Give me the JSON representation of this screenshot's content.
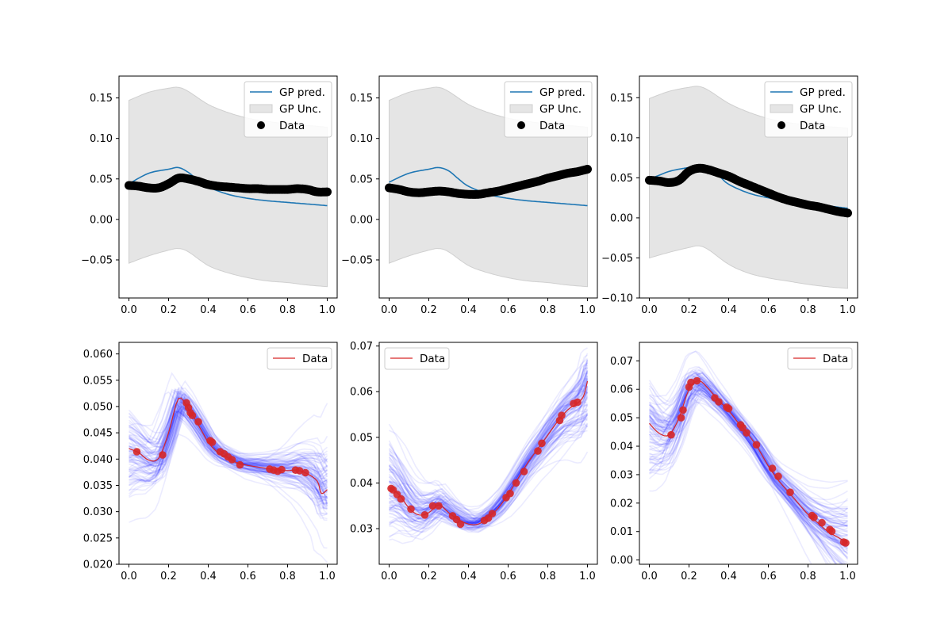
{
  "chart_data": [
    {
      "type": "line",
      "panel": "top-left",
      "xlim": [
        -0.05,
        1.05
      ],
      "ylim": [
        -0.097,
        0.177
      ],
      "xticks": [
        "0.0",
        "0.2",
        "0.4",
        "0.6",
        "0.8",
        "1.0"
      ],
      "yticks": [
        "-0.05",
        "0.00",
        "0.05",
        "0.10",
        "0.15"
      ],
      "legend": {
        "position": "top-right",
        "entries": [
          "GP pred.",
          "GP Unc.",
          "Data"
        ]
      },
      "gp_pred": {
        "x": [
          0,
          0.1,
          0.2,
          0.25,
          0.3,
          0.35,
          0.4,
          0.5,
          0.6,
          0.7,
          0.8,
          0.9,
          1.0
        ],
        "y": [
          0.044,
          0.057,
          0.062,
          0.064,
          0.058,
          0.048,
          0.04,
          0.031,
          0.026,
          0.023,
          0.021,
          0.019,
          0.017
        ]
      },
      "gp_unc": {
        "x": [
          0,
          0.1,
          0.2,
          0.25,
          0.3,
          0.4,
          0.5,
          0.6,
          0.7,
          0.8,
          0.9,
          1.0
        ],
        "upper": [
          0.147,
          0.157,
          0.162,
          0.163,
          0.158,
          0.142,
          0.132,
          0.125,
          0.121,
          0.118,
          0.116,
          0.114
        ],
        "lower": [
          -0.054,
          -0.045,
          -0.038,
          -0.036,
          -0.04,
          -0.057,
          -0.066,
          -0.072,
          -0.076,
          -0.078,
          -0.081,
          -0.083
        ]
      },
      "data_points": {
        "x": [
          0,
          0.05,
          0.1,
          0.15,
          0.2,
          0.25,
          0.3,
          0.35,
          0.4,
          0.45,
          0.5,
          0.55,
          0.6,
          0.65,
          0.7,
          0.75,
          0.8,
          0.85,
          0.9,
          0.95,
          1.0
        ],
        "y": [
          0.042,
          0.041,
          0.039,
          0.039,
          0.044,
          0.051,
          0.05,
          0.047,
          0.043,
          0.041,
          0.04,
          0.039,
          0.038,
          0.038,
          0.037,
          0.037,
          0.037,
          0.038,
          0.037,
          0.034,
          0.034
        ]
      }
    },
    {
      "type": "line",
      "panel": "top-middle",
      "xlim": [
        -0.05,
        1.05
      ],
      "ylim": [
        -0.097,
        0.177
      ],
      "xticks": [
        "0.0",
        "0.2",
        "0.4",
        "0.6",
        "0.8",
        "1.0"
      ],
      "yticks": [
        "-0.05",
        "0.00",
        "0.05",
        "0.10",
        "0.15"
      ],
      "legend": {
        "position": "top-right",
        "entries": [
          "GP pred.",
          "GP Unc.",
          "Data"
        ]
      },
      "gp_pred": {
        "x": [
          0,
          0.1,
          0.2,
          0.25,
          0.3,
          0.35,
          0.4,
          0.5,
          0.6,
          0.7,
          0.8,
          0.9,
          1.0
        ],
        "y": [
          0.046,
          0.057,
          0.062,
          0.064,
          0.06,
          0.05,
          0.041,
          0.031,
          0.026,
          0.023,
          0.021,
          0.019,
          0.017
        ]
      },
      "gp_unc": {
        "x": [
          0,
          0.1,
          0.2,
          0.25,
          0.3,
          0.4,
          0.5,
          0.6,
          0.7,
          0.8,
          0.9,
          1.0
        ],
        "upper": [
          0.147,
          0.157,
          0.162,
          0.163,
          0.158,
          0.142,
          0.132,
          0.125,
          0.121,
          0.118,
          0.116,
          0.114
        ],
        "lower": [
          -0.054,
          -0.045,
          -0.038,
          -0.036,
          -0.04,
          -0.057,
          -0.066,
          -0.072,
          -0.076,
          -0.078,
          -0.081,
          -0.083
        ]
      },
      "data_points": {
        "x": [
          0,
          0.05,
          0.1,
          0.15,
          0.2,
          0.25,
          0.3,
          0.35,
          0.4,
          0.45,
          0.5,
          0.55,
          0.6,
          0.65,
          0.7,
          0.75,
          0.8,
          0.85,
          0.9,
          0.95,
          1.0
        ],
        "y": [
          0.039,
          0.037,
          0.034,
          0.033,
          0.034,
          0.035,
          0.034,
          0.032,
          0.031,
          0.031,
          0.033,
          0.035,
          0.038,
          0.041,
          0.044,
          0.047,
          0.051,
          0.054,
          0.057,
          0.059,
          0.062
        ]
      }
    },
    {
      "type": "line",
      "panel": "top-right",
      "xlim": [
        -0.05,
        1.05
      ],
      "ylim": [
        -0.1,
        0.177
      ],
      "xticks": [
        "0.0",
        "0.2",
        "0.4",
        "0.6",
        "0.8",
        "1.0"
      ],
      "yticks": [
        "-0.10",
        "-0.05",
        "0.00",
        "0.05",
        "0.10",
        "0.15"
      ],
      "legend": {
        "position": "top-right",
        "entries": [
          "GP pred.",
          "GP Unc.",
          "Data"
        ]
      },
      "gp_pred": {
        "x": [
          0,
          0.1,
          0.2,
          0.25,
          0.3,
          0.35,
          0.4,
          0.5,
          0.6,
          0.7,
          0.8,
          0.9,
          1.0
        ],
        "y": [
          0.048,
          0.058,
          0.063,
          0.066,
          0.063,
          0.053,
          0.042,
          0.031,
          0.025,
          0.021,
          0.018,
          0.015,
          0.012
        ]
      },
      "gp_unc": {
        "x": [
          0,
          0.1,
          0.2,
          0.25,
          0.3,
          0.4,
          0.5,
          0.6,
          0.7,
          0.8,
          0.9,
          1.0
        ],
        "upper": [
          0.149,
          0.158,
          0.163,
          0.164,
          0.159,
          0.143,
          0.132,
          0.124,
          0.119,
          0.116,
          0.114,
          0.112
        ],
        "lower": [
          -0.05,
          -0.043,
          -0.037,
          -0.035,
          -0.04,
          -0.058,
          -0.069,
          -0.075,
          -0.079,
          -0.083,
          -0.086,
          -0.088
        ]
      },
      "data_points": {
        "x": [
          0,
          0.05,
          0.1,
          0.15,
          0.2,
          0.25,
          0.3,
          0.35,
          0.4,
          0.45,
          0.5,
          0.55,
          0.6,
          0.65,
          0.7,
          0.75,
          0.8,
          0.85,
          0.9,
          0.95,
          1.0
        ],
        "y": [
          0.047,
          0.046,
          0.044,
          0.047,
          0.058,
          0.062,
          0.06,
          0.056,
          0.052,
          0.046,
          0.041,
          0.036,
          0.031,
          0.026,
          0.022,
          0.019,
          0.016,
          0.014,
          0.011,
          0.008,
          0.006
        ]
      }
    },
    {
      "type": "line",
      "panel": "bottom-left",
      "xlim": [
        -0.05,
        1.05
      ],
      "ylim": [
        0.02,
        0.0622
      ],
      "xticks": [
        "0.0",
        "0.2",
        "0.4",
        "0.6",
        "0.8",
        "1.0"
      ],
      "yticks": [
        "0.020",
        "0.025",
        "0.030",
        "0.035",
        "0.040",
        "0.045",
        "0.050",
        "0.055",
        "0.060"
      ],
      "legend": {
        "position": "top-right",
        "entries": [
          "Data"
        ]
      },
      "data_line": {
        "x": [
          0,
          0.05,
          0.1,
          0.15,
          0.2,
          0.25,
          0.3,
          0.35,
          0.4,
          0.45,
          0.5,
          0.55,
          0.6,
          0.65,
          0.7,
          0.75,
          0.8,
          0.85,
          0.9,
          0.95,
          0.97,
          1.0
        ],
        "y": [
          0.042,
          0.0412,
          0.0398,
          0.0402,
          0.045,
          0.0515,
          0.0495,
          0.0465,
          0.0432,
          0.0412,
          0.0402,
          0.0392,
          0.0388,
          0.0385,
          0.0382,
          0.038,
          0.0378,
          0.0379,
          0.0372,
          0.0358,
          0.0335,
          0.0342
        ]
      },
      "data_points": {
        "x": [
          0.04,
          0.17,
          0.29,
          0.3,
          0.31,
          0.32,
          0.35,
          0.41,
          0.42,
          0.46,
          0.48,
          0.5,
          0.52,
          0.56,
          0.71,
          0.73,
          0.75,
          0.77,
          0.84,
          0.86,
          0.89
        ],
        "y": [
          0.0414,
          0.0408,
          0.0507,
          0.0498,
          0.0488,
          0.0483,
          0.0471,
          0.0435,
          0.0432,
          0.0414,
          0.041,
          0.0404,
          0.0399,
          0.0389,
          0.0381,
          0.0379,
          0.0377,
          0.038,
          0.0379,
          0.0378,
          0.0374
        ]
      }
    },
    {
      "type": "line",
      "panel": "bottom-middle",
      "xlim": [
        -0.05,
        1.05
      ],
      "ylim": [
        0.0222,
        0.0708
      ],
      "xticks": [
        "0.0",
        "0.2",
        "0.4",
        "0.6",
        "0.8",
        "1.0"
      ],
      "yticks": [
        "0.03",
        "0.04",
        "0.05",
        "0.06",
        "0.07"
      ],
      "legend": {
        "position": "top-left",
        "entries": [
          "Data"
        ]
      },
      "data_line": {
        "x": [
          0,
          0.05,
          0.1,
          0.15,
          0.2,
          0.25,
          0.3,
          0.35,
          0.4,
          0.45,
          0.5,
          0.55,
          0.6,
          0.65,
          0.7,
          0.75,
          0.8,
          0.85,
          0.9,
          0.95,
          0.98,
          1.0
        ],
        "y": [
          0.039,
          0.0375,
          0.0345,
          0.033,
          0.0335,
          0.0352,
          0.0335,
          0.032,
          0.031,
          0.031,
          0.0325,
          0.0345,
          0.0375,
          0.041,
          0.0445,
          0.0475,
          0.0505,
          0.0535,
          0.056,
          0.0575,
          0.059,
          0.0623
        ]
      },
      "data_points": {
        "x": [
          0.01,
          0.02,
          0.04,
          0.06,
          0.11,
          0.18,
          0.22,
          0.25,
          0.32,
          0.34,
          0.36,
          0.48,
          0.5,
          0.52,
          0.59,
          0.61,
          0.64,
          0.68,
          0.75,
          0.77,
          0.86,
          0.87,
          0.93,
          0.95
        ],
        "y": [
          0.0388,
          0.0385,
          0.0375,
          0.0365,
          0.0343,
          0.033,
          0.035,
          0.035,
          0.0328,
          0.032,
          0.031,
          0.0318,
          0.0323,
          0.0333,
          0.0368,
          0.0377,
          0.04,
          0.0425,
          0.047,
          0.0487,
          0.0537,
          0.0548,
          0.0574,
          0.0577
        ]
      }
    },
    {
      "type": "line",
      "panel": "bottom-right",
      "xlim": [
        -0.05,
        1.05
      ],
      "ylim": [
        -0.0015,
        0.0765
      ],
      "xticks": [
        "0.0",
        "0.2",
        "0.4",
        "0.6",
        "0.8",
        "1.0"
      ],
      "yticks": [
        "0.00",
        "0.01",
        "0.02",
        "0.03",
        "0.04",
        "0.05",
        "0.06",
        "0.07"
      ],
      "legend": {
        "position": "top-right",
        "entries": [
          "Data"
        ]
      },
      "data_line": {
        "x": [
          0,
          0.05,
          0.1,
          0.15,
          0.2,
          0.25,
          0.3,
          0.35,
          0.4,
          0.45,
          0.5,
          0.55,
          0.6,
          0.65,
          0.7,
          0.75,
          0.8,
          0.85,
          0.9,
          0.95,
          1.0
        ],
        "y": [
          0.048,
          0.0445,
          0.044,
          0.05,
          0.06,
          0.063,
          0.06,
          0.056,
          0.0525,
          0.048,
          0.044,
          0.039,
          0.033,
          0.028,
          0.024,
          0.02,
          0.016,
          0.013,
          0.01,
          0.008,
          0.006
        ]
      },
      "data_points": {
        "x": [
          0.11,
          0.16,
          0.17,
          0.2,
          0.21,
          0.24,
          0.33,
          0.35,
          0.39,
          0.4,
          0.46,
          0.47,
          0.49,
          0.54,
          0.62,
          0.65,
          0.71,
          0.82,
          0.83,
          0.87,
          0.91,
          0.92,
          0.98,
          0.99
        ],
        "y": [
          0.044,
          0.05,
          0.0527,
          0.0608,
          0.0624,
          0.063,
          0.057,
          0.0556,
          0.0537,
          0.0532,
          0.0475,
          0.0465,
          0.0447,
          0.0405,
          0.0322,
          0.0294,
          0.0238,
          0.0156,
          0.015,
          0.0131,
          0.0107,
          0.0101,
          0.0063,
          0.006
        ]
      }
    }
  ],
  "colors": {
    "gp_pred": "#1f77b4",
    "gp_unc": "#e5e5e5",
    "gp_unc_edge": "#cfcfcf",
    "data_points_top": "#000000",
    "data_line": "#d62728",
    "samples": "#0000ff"
  }
}
